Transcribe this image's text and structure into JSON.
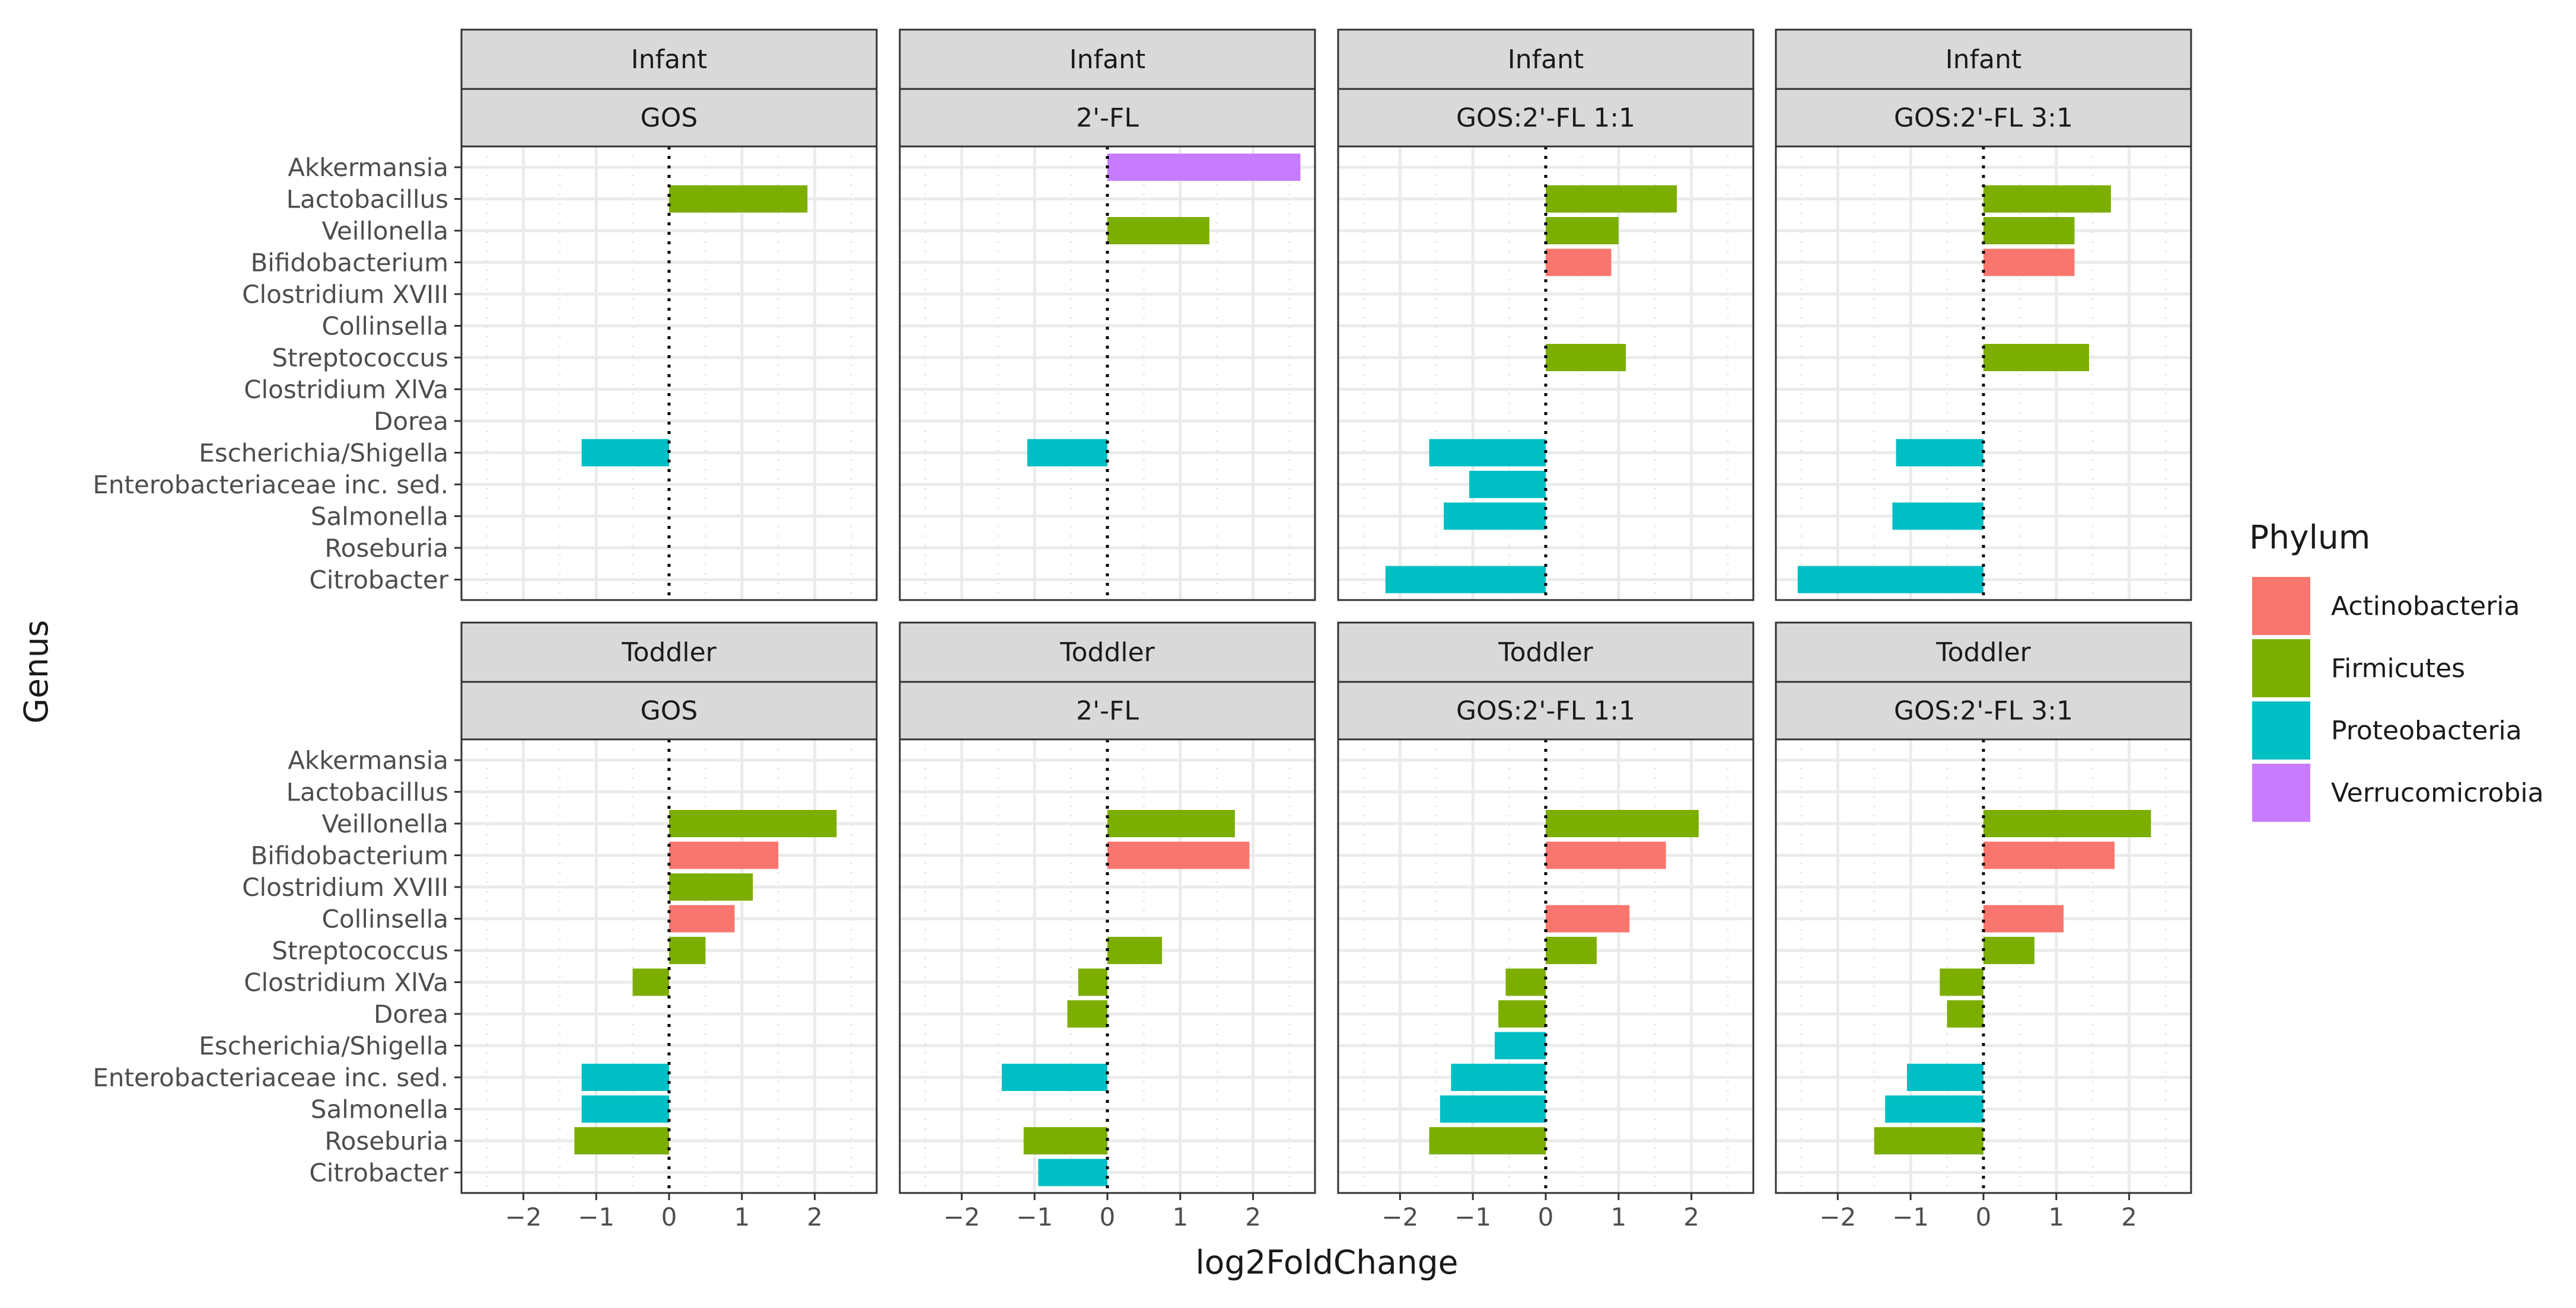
{
  "chart_data": {
    "type": "bar",
    "orientation": "horizontal",
    "xlabel": "log2FoldChange",
    "ylabel": "Genus",
    "xlim": [
      -2.85,
      2.85
    ],
    "xticks": [
      -2,
      -1,
      0,
      1,
      2
    ],
    "xtick_labels": [
      "−2",
      "−1",
      "0",
      "1",
      "2"
    ],
    "genera": [
      "Akkermansia",
      "Lactobacillus",
      "Veillonella",
      "Bifidobacterium",
      "Clostridium XVIII",
      "Collinsella",
      "Streptococcus",
      "Clostridium XlVa",
      "Dorea",
      "Escherichia/Shigella",
      "Enterobacteriaceae inc. sed.",
      "Salmonella",
      "Roseburia",
      "Citrobacter"
    ],
    "legend": {
      "title": "Phylum",
      "position": "right",
      "entries": [
        {
          "name": "Actinobacteria",
          "color": "#F8766D"
        },
        {
          "name": "Firmicutes",
          "color": "#7CAE00"
        },
        {
          "name": "Proteobacteria",
          "color": "#00BFC4"
        },
        {
          "name": "Verrucomicrobia",
          "color": "#C77CFF"
        }
      ]
    },
    "facet_rows": [
      "Infant",
      "Toddler"
    ],
    "facet_cols": [
      "GOS",
      "2'-FL",
      "GOS:2'-FL 1:1",
      "GOS:2'-FL 3:1"
    ],
    "panels": [
      {
        "age": "Infant",
        "treatment": "GOS",
        "bars": [
          {
            "genus": "Lactobacillus",
            "value": 1.9,
            "phylum": "Firmicutes"
          },
          {
            "genus": "Escherichia/Shigella",
            "value": -1.2,
            "phylum": "Proteobacteria"
          }
        ]
      },
      {
        "age": "Infant",
        "treatment": "2'-FL",
        "bars": [
          {
            "genus": "Akkermansia",
            "value": 2.65,
            "phylum": "Verrucomicrobia"
          },
          {
            "genus": "Veillonella",
            "value": 1.4,
            "phylum": "Firmicutes"
          },
          {
            "genus": "Escherichia/Shigella",
            "value": -1.1,
            "phylum": "Proteobacteria"
          }
        ]
      },
      {
        "age": "Infant",
        "treatment": "GOS:2'-FL 1:1",
        "bars": [
          {
            "genus": "Lactobacillus",
            "value": 1.8,
            "phylum": "Firmicutes"
          },
          {
            "genus": "Veillonella",
            "value": 1.0,
            "phylum": "Firmicutes"
          },
          {
            "genus": "Bifidobacterium",
            "value": 0.9,
            "phylum": "Actinobacteria"
          },
          {
            "genus": "Streptococcus",
            "value": 1.1,
            "phylum": "Firmicutes"
          },
          {
            "genus": "Escherichia/Shigella",
            "value": -1.6,
            "phylum": "Proteobacteria"
          },
          {
            "genus": "Enterobacteriaceae inc. sed.",
            "value": -1.05,
            "phylum": "Proteobacteria"
          },
          {
            "genus": "Salmonella",
            "value": -1.4,
            "phylum": "Proteobacteria"
          },
          {
            "genus": "Citrobacter",
            "value": -2.2,
            "phylum": "Proteobacteria"
          }
        ]
      },
      {
        "age": "Infant",
        "treatment": "GOS:2'-FL 3:1",
        "bars": [
          {
            "genus": "Lactobacillus",
            "value": 1.75,
            "phylum": "Firmicutes"
          },
          {
            "genus": "Veillonella",
            "value": 1.25,
            "phylum": "Firmicutes"
          },
          {
            "genus": "Bifidobacterium",
            "value": 1.25,
            "phylum": "Actinobacteria"
          },
          {
            "genus": "Streptococcus",
            "value": 1.45,
            "phylum": "Firmicutes"
          },
          {
            "genus": "Escherichia/Shigella",
            "value": -1.2,
            "phylum": "Proteobacteria"
          },
          {
            "genus": "Salmonella",
            "value": -1.25,
            "phylum": "Proteobacteria"
          },
          {
            "genus": "Citrobacter",
            "value": -2.55,
            "phylum": "Proteobacteria"
          }
        ]
      },
      {
        "age": "Toddler",
        "treatment": "GOS",
        "bars": [
          {
            "genus": "Veillonella",
            "value": 2.3,
            "phylum": "Firmicutes"
          },
          {
            "genus": "Bifidobacterium",
            "value": 1.5,
            "phylum": "Actinobacteria"
          },
          {
            "genus": "Clostridium XVIII",
            "value": 1.15,
            "phylum": "Firmicutes"
          },
          {
            "genus": "Collinsella",
            "value": 0.9,
            "phylum": "Actinobacteria"
          },
          {
            "genus": "Streptococcus",
            "value": 0.5,
            "phylum": "Firmicutes"
          },
          {
            "genus": "Clostridium XlVa",
            "value": -0.5,
            "phylum": "Firmicutes"
          },
          {
            "genus": "Enterobacteriaceae inc. sed.",
            "value": -1.2,
            "phylum": "Proteobacteria"
          },
          {
            "genus": "Salmonella",
            "value": -1.2,
            "phylum": "Proteobacteria"
          },
          {
            "genus": "Roseburia",
            "value": -1.3,
            "phylum": "Firmicutes"
          }
        ]
      },
      {
        "age": "Toddler",
        "treatment": "2'-FL",
        "bars": [
          {
            "genus": "Veillonella",
            "value": 1.75,
            "phylum": "Firmicutes"
          },
          {
            "genus": "Bifidobacterium",
            "value": 1.95,
            "phylum": "Actinobacteria"
          },
          {
            "genus": "Streptococcus",
            "value": 0.75,
            "phylum": "Firmicutes"
          },
          {
            "genus": "Clostridium XlVa",
            "value": -0.4,
            "phylum": "Firmicutes"
          },
          {
            "genus": "Dorea",
            "value": -0.55,
            "phylum": "Firmicutes"
          },
          {
            "genus": "Enterobacteriaceae inc. sed.",
            "value": -1.45,
            "phylum": "Proteobacteria"
          },
          {
            "genus": "Roseburia",
            "value": -1.15,
            "phylum": "Firmicutes"
          },
          {
            "genus": "Citrobacter",
            "value": -0.95,
            "phylum": "Proteobacteria"
          }
        ]
      },
      {
        "age": "Toddler",
        "treatment": "GOS:2'-FL 1:1",
        "bars": [
          {
            "genus": "Veillonella",
            "value": 2.1,
            "phylum": "Firmicutes"
          },
          {
            "genus": "Bifidobacterium",
            "value": 1.65,
            "phylum": "Actinobacteria"
          },
          {
            "genus": "Collinsella",
            "value": 1.15,
            "phylum": "Actinobacteria"
          },
          {
            "genus": "Streptococcus",
            "value": 0.7,
            "phylum": "Firmicutes"
          },
          {
            "genus": "Clostridium XlVa",
            "value": -0.55,
            "phylum": "Firmicutes"
          },
          {
            "genus": "Dorea",
            "value": -0.65,
            "phylum": "Firmicutes"
          },
          {
            "genus": "Escherichia/Shigella",
            "value": -0.7,
            "phylum": "Proteobacteria"
          },
          {
            "genus": "Enterobacteriaceae inc. sed.",
            "value": -1.3,
            "phylum": "Proteobacteria"
          },
          {
            "genus": "Salmonella",
            "value": -1.45,
            "phylum": "Proteobacteria"
          },
          {
            "genus": "Roseburia",
            "value": -1.6,
            "phylum": "Firmicutes"
          }
        ]
      },
      {
        "age": "Toddler",
        "treatment": "GOS:2'-FL 3:1",
        "bars": [
          {
            "genus": "Veillonella",
            "value": 2.3,
            "phylum": "Firmicutes"
          },
          {
            "genus": "Bifidobacterium",
            "value": 1.8,
            "phylum": "Actinobacteria"
          },
          {
            "genus": "Collinsella",
            "value": 1.1,
            "phylum": "Actinobacteria"
          },
          {
            "genus": "Streptococcus",
            "value": 0.7,
            "phylum": "Firmicutes"
          },
          {
            "genus": "Clostridium XlVa",
            "value": -0.6,
            "phylum": "Firmicutes"
          },
          {
            "genus": "Dorea",
            "value": -0.5,
            "phylum": "Firmicutes"
          },
          {
            "genus": "Enterobacteriaceae inc. sed.",
            "value": -1.05,
            "phylum": "Proteobacteria"
          },
          {
            "genus": "Salmonella",
            "value": -1.35,
            "phylum": "Proteobacteria"
          },
          {
            "genus": "Roseburia",
            "value": -1.5,
            "phylum": "Firmicutes"
          }
        ]
      }
    ]
  }
}
